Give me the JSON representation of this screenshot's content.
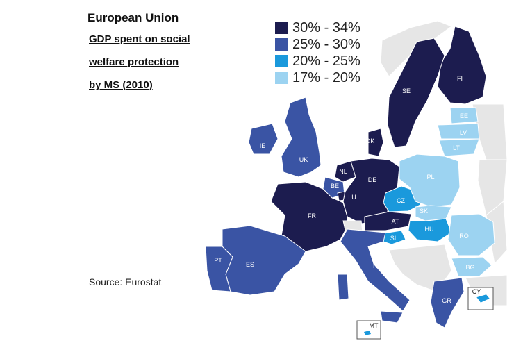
{
  "title": {
    "main": "European Union",
    "lines": [
      "GDP spent on social",
      "welfare protection",
      "by MS (2010)"
    ]
  },
  "legend": [
    {
      "label": "30% - 34%",
      "color": "#1c1c4f"
    },
    {
      "label": "25% - 30%",
      "color": "#3a54a4"
    },
    {
      "label": "20% - 25%",
      "color": "#1a99dc"
    },
    {
      "label": "17% - 20%",
      "color": "#9cd3f1"
    }
  ],
  "source": "Source: Eurostat",
  "colors": {
    "non_eu": "#e6e6e6",
    "border": "#ffffff"
  },
  "countries": [
    {
      "code": "FI",
      "band": 0
    },
    {
      "code": "SE",
      "band": 0
    },
    {
      "code": "DK",
      "band": 0
    },
    {
      "code": "NL",
      "band": 0
    },
    {
      "code": "DE",
      "band": 0
    },
    {
      "code": "FR",
      "band": 0
    },
    {
      "code": "AT",
      "band": 0
    },
    {
      "code": "LU",
      "band": 0
    },
    {
      "code": "UK",
      "band": 1
    },
    {
      "code": "IE",
      "band": 1
    },
    {
      "code": "BE",
      "band": 1
    },
    {
      "code": "ES",
      "band": 1
    },
    {
      "code": "PT",
      "band": 1
    },
    {
      "code": "IT",
      "band": 1
    },
    {
      "code": "GR",
      "band": 1
    },
    {
      "code": "CZ",
      "band": 2
    },
    {
      "code": "HU",
      "band": 2
    },
    {
      "code": "SI",
      "band": 2
    },
    {
      "code": "CY",
      "band": 2
    },
    {
      "code": "MT",
      "band": 2
    },
    {
      "code": "EE",
      "band": 3
    },
    {
      "code": "LV",
      "band": 3
    },
    {
      "code": "LT",
      "band": 3
    },
    {
      "code": "PL",
      "band": 3
    },
    {
      "code": "SK",
      "band": 3
    },
    {
      "code": "RO",
      "band": 3
    },
    {
      "code": "BG",
      "band": 3
    }
  ]
}
